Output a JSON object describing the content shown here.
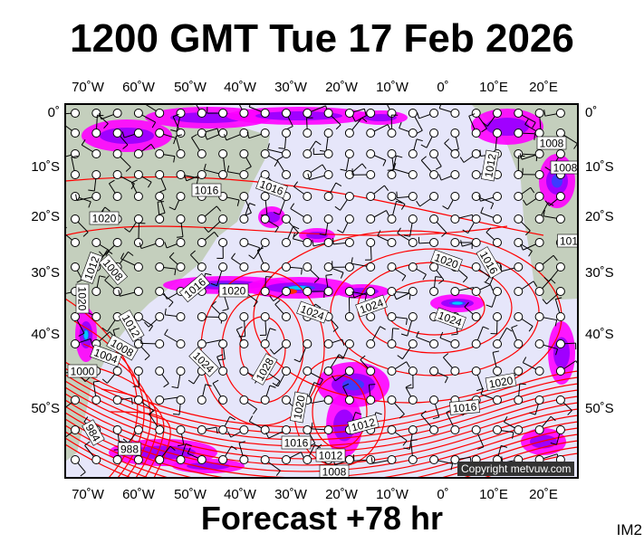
{
  "header": {
    "title": "1200 GMT Tue 17 Feb 2026"
  },
  "footer": {
    "subtitle": "Forecast +78 hr",
    "image_code": "IM2",
    "copyright": "Copyright metvuw.com"
  },
  "axes": {
    "longitude_ticks": [
      "70˚W",
      "60˚W",
      "50˚W",
      "40˚W",
      "30˚W",
      "20˚W",
      "10˚W",
      "0˚",
      "10˚E",
      "20˚E"
    ],
    "latitude_ticks": [
      "0˚",
      "10˚S",
      "20˚S",
      "30˚S",
      "40˚S",
      "50˚S"
    ]
  },
  "map": {
    "ocean_color": "#e6e6fa",
    "land_color": "#c4cfbd",
    "isobar_color": "#ff0000",
    "precip_colors": [
      "#ff00ff",
      "#a000ff",
      "#3c3cff",
      "#00c8ff",
      "#00ff80",
      "#ffff00",
      "#ff3000"
    ],
    "isobar_labels": [
      "1016",
      "1016",
      "1020",
      "1012",
      "1020",
      "1008",
      "1016",
      "1020",
      "1012",
      "1008",
      "1004",
      "1000",
      "1024",
      "1028",
      "1024",
      "1024",
      "1024",
      "1020",
      "1016",
      "1020",
      "1016",
      "1012",
      "1020",
      "1016",
      "1012",
      "1008",
      "988",
      "984",
      "1008",
      "1008",
      "1012",
      "101"
    ]
  }
}
